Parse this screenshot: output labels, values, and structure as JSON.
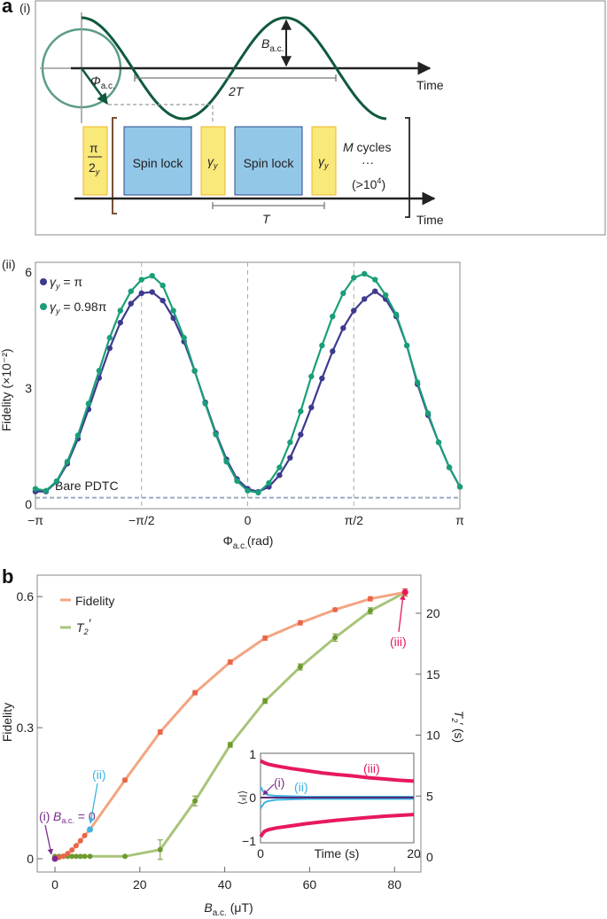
{
  "figure": {
    "panel_a": "a",
    "panel_b": "b"
  },
  "diagram": {
    "label": "(i)",
    "time_label_top": "Time",
    "time_label_bottom": "Time",
    "two_T": "2T",
    "T": "T",
    "B_main": "B",
    "B_sub": "a.c.",
    "phi_main": "Φ",
    "phi_sub": "a.c.",
    "pulse_pi_num": "π",
    "pulse_pi_den": "2",
    "pulse_pi_sub": "y",
    "spin_lock_1": "Spin lock",
    "spin_lock_2": "Spin lock",
    "gamma": "γ",
    "gamma_sub": "y",
    "m_cycles_M": "M",
    "m_cycles_rest": " cycles",
    "ellipsis": "···",
    "count_open": "(>10",
    "count_exp": "4",
    "count_close": ")",
    "colors": {
      "wave": "#0f5a3c",
      "circle": "#5d9c8a",
      "pulse_yellow": "#f9e87a",
      "pulse_blue": "#93c7e8",
      "bracket": "#6b3a1f"
    }
  },
  "chart_data": [
    {
      "type": "line",
      "label": "(ii)",
      "xlabel_main": "Φ",
      "xlabel_sub": "a.c.",
      "xlabel_unit": "(rad)",
      "ylabel": "Fidelity (×10⁻²)",
      "xlim": [
        -3.1416,
        3.1416
      ],
      "ylim": [
        0,
        6.2
      ],
      "xtick_labels": [
        "−π",
        "−π/2",
        "0",
        "π/2",
        "π"
      ],
      "xtick_values": [
        -3.1416,
        -1.5708,
        0,
        1.5708,
        3.1416
      ],
      "yticks": [
        "0",
        "3",
        "6"
      ],
      "grid": "dashed vertical at −π/2, 0, π/2",
      "baseline": {
        "label": "Bare PDTC",
        "value": 0.17,
        "color": "#9aaac4"
      },
      "legend_placement": "top-left",
      "legend": [
        {
          "symbol": "γ",
          "sub": "y",
          "value": " = π",
          "color": "#3d3a8f"
        },
        {
          "symbol": "γ",
          "sub": "y",
          "value": " = 0.98π",
          "color": "#1a9e7a"
        }
      ],
      "x": [
        -3.142,
        -2.985,
        -2.827,
        -2.67,
        -2.513,
        -2.356,
        -2.199,
        -2.042,
        -1.885,
        -1.728,
        -1.571,
        -1.414,
        -1.257,
        -1.1,
        -0.942,
        -0.785,
        -0.628,
        -0.471,
        -0.314,
        -0.157,
        0,
        0.157,
        0.314,
        0.471,
        0.628,
        0.785,
        0.942,
        1.1,
        1.257,
        1.414,
        1.571,
        1.728,
        1.885,
        2.042,
        2.199,
        2.356,
        2.513,
        2.67,
        2.827,
        2.985,
        3.142
      ],
      "series": [
        {
          "color": "#3d3a8f",
          "values": [
            0.33,
            0.33,
            0.58,
            1.05,
            1.69,
            2.45,
            3.26,
            4.03,
            4.69,
            5.18,
            5.45,
            5.48,
            5.26,
            4.81,
            4.2,
            3.44,
            2.63,
            1.84,
            1.16,
            0.65,
            0.4,
            0.32,
            0.45,
            0.75,
            1.2,
            1.8,
            2.5,
            3.25,
            3.95,
            4.55,
            5.0,
            5.3,
            5.5,
            5.3,
            4.85,
            4.1,
            3.1,
            2.3,
            1.6,
            0.95,
            0.45
          ]
        },
        {
          "color": "#1a9e7a",
          "values": [
            0.4,
            0.35,
            0.6,
            1.1,
            1.78,
            2.6,
            3.45,
            4.3,
            5.0,
            5.5,
            5.8,
            5.9,
            5.65,
            5.0,
            4.3,
            3.45,
            2.6,
            1.8,
            1.1,
            0.6,
            0.35,
            0.3,
            0.55,
            0.95,
            1.6,
            2.4,
            3.3,
            4.1,
            4.85,
            5.45,
            5.85,
            5.95,
            5.8,
            5.4,
            4.9,
            4.1,
            3.15,
            2.35,
            1.6,
            0.95,
            0.45
          ]
        }
      ]
    },
    {
      "type": "line",
      "xlabel_main": "B",
      "xlabel_sub": "a.c.",
      "xlabel_unit": " (μT)",
      "ylabel": "Fidelity",
      "y2label_main": "T",
      "y2label_sub": "2",
      "y2label_rest": "′ (s)",
      "xlim": [
        -4,
        86
      ],
      "ylim": [
        -0.03,
        0.65
      ],
      "y2lim": [
        -1,
        23
      ],
      "xticks": [
        "0",
        "20",
        "40",
        "60",
        "80"
      ],
      "yticks": [
        "0",
        "0.3",
        "0.6"
      ],
      "y2ticks": [
        "0",
        "5",
        "10",
        "15",
        "20"
      ],
      "legend_placement": "top-left",
      "legend": [
        {
          "label": "Fidelity",
          "color": "#f4a582"
        },
        {
          "label_main": "T",
          "label_sub": "2",
          "label_prime": "′",
          "color": "#a8c47a"
        }
      ],
      "series": [
        {
          "axis": "left",
          "line_color": "#f4a582",
          "point_color": "#e8664a",
          "x": [
            0,
            1,
            2,
            3,
            4,
            5,
            6,
            7,
            8.25,
            16.5,
            24.8,
            33,
            41.3,
            49.5,
            57.8,
            66,
            74.3,
            82.5
          ],
          "values": [
            0.002,
            0.003,
            0.006,
            0.012,
            0.02,
            0.03,
            0.041,
            0.053,
            0.067,
            0.18,
            0.29,
            0.38,
            0.45,
            0.505,
            0.54,
            0.57,
            0.595,
            0.61
          ],
          "errors": [
            0,
            0,
            0,
            0,
            0,
            0,
            0,
            0,
            0,
            0.004,
            0.005,
            0.005,
            0.005,
            0.005,
            0.005,
            0.004,
            0.005,
            0.008
          ]
        },
        {
          "axis": "right",
          "line_color": "#a8c47a",
          "point_color": "#6e9a2e",
          "x": [
            0,
            1,
            2,
            3,
            4,
            5,
            6,
            7,
            8.25,
            16.5,
            24.8,
            33,
            41.3,
            49.5,
            57.8,
            66,
            74.3,
            82.5
          ],
          "values": [
            0.05,
            0.05,
            0.05,
            0.05,
            0.05,
            0.05,
            0.05,
            0.05,
            0.05,
            0.05,
            0.6,
            4.6,
            9.2,
            12.8,
            15.6,
            18.0,
            20.2,
            21.7
          ],
          "errors": [
            0,
            0,
            0,
            0,
            0,
            0,
            0,
            0,
            0,
            0,
            0.8,
            0.4,
            0.2,
            0.2,
            0.25,
            0.3,
            0.25,
            0.3
          ]
        }
      ],
      "highlight_points": [
        {
          "label": "(i)",
          "x": 0,
          "value": 0,
          "color": "#7b2d8e"
        },
        {
          "label": "(ii)",
          "x": 8.25,
          "value": 0.067,
          "color": "#3cb4e0"
        },
        {
          "label": "(iii)",
          "x": 82.5,
          "value": 0.61,
          "color": "#e8185f"
        }
      ],
      "annotation_b_main": "B",
      "annotation_b_sub": "a.c.",
      "annotation_b_rest": " = 0",
      "inset": {
        "type": "line",
        "ylabel": "⟨Iˣ⟩",
        "xlabel": "Time (s)",
        "xlim": [
          0,
          20
        ],
        "ylim": [
          -1,
          1
        ],
        "xticks": [
          "0",
          "20"
        ],
        "yticks": [
          "1",
          "0",
          "−1"
        ],
        "t": [
          0,
          0.5,
          1,
          2,
          4,
          6,
          8,
          10,
          12,
          14,
          16,
          18,
          20
        ],
        "series": [
          {
            "label": "(iii)",
            "color": "#e8185f",
            "upper": [
              0.85,
              0.8,
              0.77,
              0.73,
              0.67,
              0.62,
              0.57,
              0.53,
              0.5,
              0.46,
              0.43,
              0.4,
              0.38
            ],
            "lower": [
              -0.9,
              -0.78,
              -0.74,
              -0.7,
              -0.65,
              -0.6,
              -0.56,
              -0.52,
              -0.49,
              -0.46,
              -0.43,
              -0.41,
              -0.39
            ]
          },
          {
            "label": "(ii)",
            "color": "#3cb4e0",
            "upper": [
              0.25,
              0.1,
              0.06,
              0.04,
              0.03,
              0.02,
              0.02,
              0.02,
              0.02,
              0.02,
              0.02,
              0.02,
              0.02
            ],
            "lower": [
              -0.25,
              -0.12,
              -0.08,
              -0.05,
              -0.04,
              -0.03,
              -0.03,
              -0.03,
              -0.03,
              -0.03,
              -0.03,
              -0.03,
              -0.03
            ]
          },
          {
            "label": "(i)",
            "color": "#5a2a7a",
            "upper": [
              0,
              0,
              0,
              0,
              0,
              0,
              0,
              0,
              0,
              0,
              0,
              0,
              0
            ],
            "lower": [
              0,
              0,
              0,
              0,
              0,
              0,
              0,
              0,
              0,
              0,
              0,
              0,
              0
            ]
          }
        ]
      }
    }
  ]
}
